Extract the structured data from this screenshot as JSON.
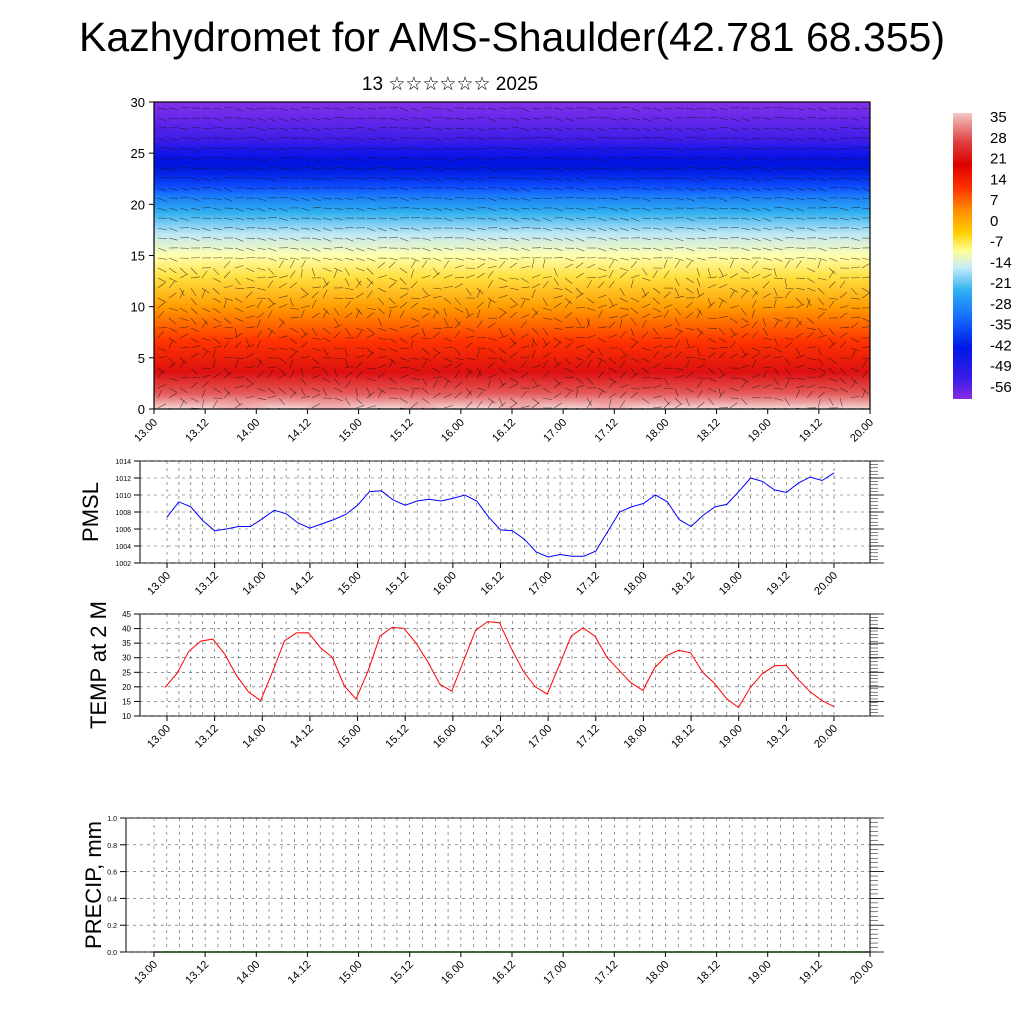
{
  "title": "Kazhydromet for AMS-Shaulder(42.781 68.355)",
  "subtitle": "13 ☆☆☆☆☆☆ 2025",
  "colors": {
    "pmsl_line": "#0000ff",
    "temp_line": "#ff0000",
    "precip_line": "#003300"
  },
  "chart_data": [
    {
      "type": "heatmap",
      "name": "vertical-profile",
      "title": "",
      "x_ticks": [
        "13.00",
        "13.12",
        "14.00",
        "14.12",
        "15.00",
        "15.12",
        "16.00",
        "16.12",
        "17.00",
        "17.12",
        "18.00",
        "18.12",
        "19.00",
        "19.12",
        "20.00"
      ],
      "y_ticks": [
        "0",
        "5",
        "10",
        "15",
        "20",
        "25",
        "30"
      ],
      "ylim": [
        0,
        30
      ],
      "colorbar_labels": [
        "35",
        "28",
        "21",
        "14",
        "7",
        "0",
        "-7",
        "-14",
        "-21",
        "-28",
        "-35",
        "-42",
        "-49",
        "-56"
      ],
      "colorbar_range": [
        -60,
        38
      ],
      "overlay": "wind barbs"
    },
    {
      "type": "line",
      "name": "pmsl",
      "ylabel": "PMSL",
      "ylim": [
        1002,
        1014
      ],
      "y_ticks": [
        "1014",
        "1012",
        "1010",
        "1008",
        "1006",
        "1004",
        "1002"
      ],
      "x_ticks": [
        "13.00",
        "13.12",
        "14.00",
        "14.12",
        "15.00",
        "15.12",
        "16.00",
        "16.12",
        "17.00",
        "17.12",
        "18.00",
        "18.12",
        "19.00",
        "19.12",
        "20.00"
      ],
      "values": [
        1007.4,
        1009.2,
        1008.6,
        1007.0,
        1005.8,
        1006.0,
        1006.3,
        1006.3,
        1007.2,
        1008.2,
        1007.8,
        1006.7,
        1006.1,
        1006.6,
        1007.1,
        1007.7,
        1008.8,
        1010.4,
        1010.5,
        1009.4,
        1008.8,
        1009.3,
        1009.5,
        1009.3,
        1009.6,
        1010.0,
        1009.3,
        1007.4,
        1005.9,
        1005.8,
        1004.8,
        1003.3,
        1002.7,
        1003.0,
        1002.8,
        1002.8,
        1003.4,
        1005.7,
        1008.0,
        1008.6,
        1009.0,
        1010.0,
        1009.2,
        1007.1,
        1006.3,
        1007.6,
        1008.6,
        1008.9,
        1010.4,
        1012.0,
        1011.6,
        1010.6,
        1010.3,
        1011.4,
        1012.1,
        1011.7,
        1012.6
      ]
    },
    {
      "type": "line",
      "name": "temp",
      "ylabel": "TEMP at 2 M",
      "ylim": [
        10,
        45
      ],
      "y_ticks": [
        "45",
        "40",
        "35",
        "30",
        "25",
        "20",
        "15",
        "10"
      ],
      "x_ticks": [
        "13.00",
        "13.12",
        "14.00",
        "14.12",
        "15.00",
        "15.12",
        "16.00",
        "16.12",
        "17.00",
        "17.12",
        "18.00",
        "18.12",
        "19.00",
        "19.12",
        "20.00"
      ],
      "values": [
        19.8,
        24.6,
        32.2,
        35.7,
        36.4,
        31.2,
        23.8,
        18.2,
        15.3,
        25.1,
        35.8,
        38.5,
        38.6,
        33.5,
        30.1,
        20.4,
        15.8,
        25.5,
        37.4,
        40.4,
        40.1,
        35.1,
        28.6,
        20.9,
        18.5,
        29.0,
        39.4,
        42.4,
        42.0,
        33.1,
        25.3,
        20.0,
        17.5,
        27.4,
        37.4,
        40.3,
        37.3,
        30.1,
        25.7,
        21.4,
        18.8,
        26.6,
        30.8,
        32.5,
        31.7,
        25.0,
        21.2,
        16.0,
        12.9,
        19.8,
        24.5,
        27.2,
        27.4,
        22.5,
        18.3,
        15.2,
        13.3
      ]
    },
    {
      "type": "line",
      "name": "precip",
      "ylabel": "PRECIP, mm",
      "ylim": [
        0,
        1
      ],
      "y_ticks": [
        "1.0",
        "0.8",
        "0.6",
        "0.4",
        "0.2",
        "0.0"
      ],
      "x_ticks": [
        "13.00",
        "13.12",
        "14.00",
        "14.12",
        "15.00",
        "15.12",
        "16.00",
        "16.12",
        "17.00",
        "17.12",
        "18.00",
        "18.12",
        "19.00",
        "19.12",
        "20.00"
      ],
      "values": [
        0,
        0,
        0,
        0,
        0,
        0,
        0,
        0,
        0,
        0,
        0,
        0,
        0,
        0,
        0,
        0,
        0,
        0,
        0,
        0,
        0,
        0,
        0,
        0,
        0,
        0,
        0,
        0,
        0,
        0,
        0,
        0,
        0,
        0,
        0,
        0,
        0,
        0,
        0,
        0,
        0,
        0,
        0,
        0,
        0,
        0,
        0,
        0,
        0,
        0,
        0,
        0,
        0,
        0,
        0,
        0,
        0
      ]
    }
  ]
}
